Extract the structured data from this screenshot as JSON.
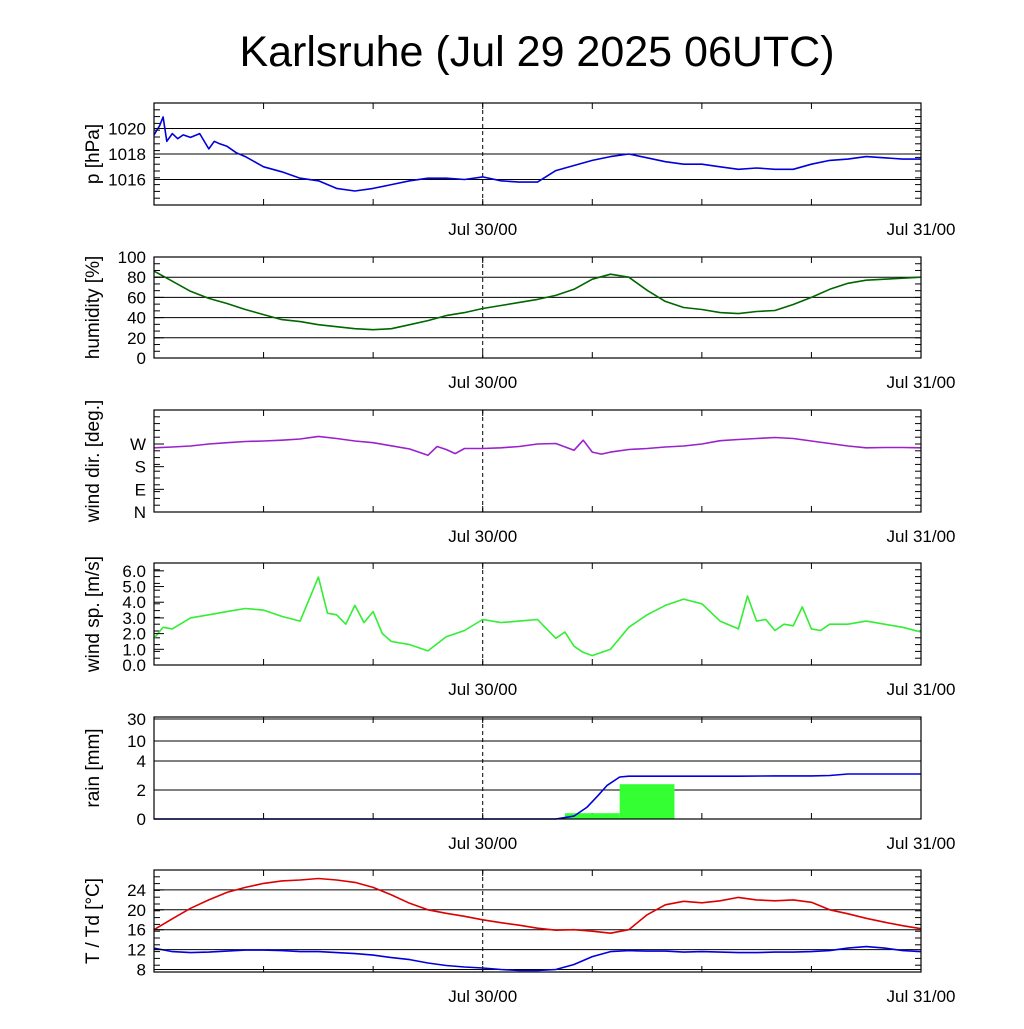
{
  "title": "Karlsruhe (Jul 29 2025 06UTC)",
  "x_axis": {
    "labels": [
      "Jul 30/00",
      "Jul 31/00"
    ],
    "range_hours": [
      0,
      42
    ],
    "label_hours": [
      18,
      42
    ],
    "minor_tick_hours": [
      6,
      12,
      18,
      24,
      30,
      36
    ],
    "dashed_marker_hour": 18
  },
  "chart_data": [
    {
      "type": "line",
      "ylabel": "p [hPa]",
      "ylim": [
        1014,
        1022
      ],
      "yticks": [
        1016,
        1018,
        1020
      ],
      "ytick_labels": [
        "1016",
        "1018",
        "1020"
      ],
      "grid_y": [
        1016,
        1018,
        1020
      ],
      "series": [
        {
          "color": "#0000dd",
          "x": [
            0,
            0.3,
            0.5,
            0.7,
            1,
            1.3,
            1.6,
            2,
            2.5,
            3,
            3.3,
            3.6,
            4,
            4.5,
            5,
            6,
            7,
            8,
            9,
            10,
            11,
            12,
            13,
            14,
            15,
            16,
            17,
            18,
            19,
            20,
            21,
            22,
            23,
            24,
            25,
            26,
            27,
            28,
            29,
            30,
            31,
            32,
            33,
            34,
            35,
            36,
            37,
            38,
            39,
            40,
            41,
            42
          ],
          "y": [
            1019.5,
            1020.2,
            1020.9,
            1019.0,
            1019.6,
            1019.2,
            1019.5,
            1019.3,
            1019.6,
            1018.4,
            1019.0,
            1018.8,
            1018.6,
            1018.1,
            1017.8,
            1017.0,
            1016.6,
            1016.1,
            1015.9,
            1015.3,
            1015.1,
            1015.3,
            1015.6,
            1015.9,
            1016.1,
            1016.1,
            1016.0,
            1016.2,
            1015.9,
            1015.8,
            1015.8,
            1016.7,
            1017.1,
            1017.5,
            1017.8,
            1018.0,
            1017.7,
            1017.4,
            1017.2,
            1017.2,
            1017.0,
            1016.8,
            1016.9,
            1016.8,
            1016.8,
            1017.2,
            1017.5,
            1017.6,
            1017.8,
            1017.7,
            1017.6,
            1017.6
          ]
        }
      ]
    },
    {
      "type": "line",
      "ylabel": "humidity [%]",
      "ylim": [
        0,
        100
      ],
      "yticks": [
        0,
        20,
        40,
        60,
        80,
        100
      ],
      "ytick_labels": [
        "0",
        "20",
        "40",
        "60",
        "80",
        "100"
      ],
      "grid_y": [
        20,
        40,
        60,
        80
      ],
      "series": [
        {
          "color": "#006600",
          "x": [
            0,
            1,
            2,
            3,
            4,
            5,
            6,
            7,
            8,
            9,
            10,
            11,
            12,
            13,
            14,
            15,
            16,
            17,
            18,
            19,
            20,
            21,
            22,
            23,
            24,
            25,
            26,
            27,
            28,
            29,
            30,
            31,
            32,
            33,
            34,
            35,
            36,
            37,
            38,
            39,
            40,
            41,
            42
          ],
          "y": [
            86,
            76,
            66,
            59,
            54,
            48,
            43,
            38,
            36,
            33,
            31,
            29,
            28,
            29,
            33,
            37,
            42,
            45,
            49,
            52,
            55,
            58,
            62,
            68,
            78,
            83,
            80,
            67,
            56,
            50,
            48,
            45,
            44,
            46,
            47,
            53,
            60,
            68,
            74,
            77,
            78,
            79,
            80
          ]
        }
      ]
    },
    {
      "type": "line",
      "ylabel": "wind dir. [deg.]",
      "ylim": [
        0,
        405
      ],
      "yticks": [
        0,
        90,
        180,
        270
      ],
      "ytick_labels": [
        "N",
        "E",
        "S",
        "W"
      ],
      "grid_y": [],
      "series": [
        {
          "color": "#9922cc",
          "x": [
            0,
            1,
            2,
            3,
            4,
            5,
            6,
            7,
            8,
            9,
            10,
            11,
            12,
            13,
            14,
            15,
            15.5,
            16,
            16.5,
            17,
            18,
            19,
            20,
            21,
            22,
            23,
            23.5,
            24,
            24.5,
            25,
            26,
            27,
            28,
            29,
            30,
            31,
            32,
            33,
            34,
            35,
            36,
            37,
            38,
            39,
            40,
            41,
            42
          ],
          "y": [
            255,
            258,
            262,
            270,
            275,
            280,
            282,
            285,
            290,
            300,
            292,
            282,
            275,
            263,
            250,
            225,
            260,
            248,
            232,
            252,
            252,
            255,
            260,
            270,
            272,
            245,
            285,
            238,
            230,
            238,
            248,
            252,
            258,
            262,
            270,
            283,
            288,
            292,
            296,
            292,
            282,
            272,
            262,
            255,
            256,
            256,
            255
          ]
        }
      ]
    },
    {
      "type": "line",
      "ylabel": "wind sp. [m/s]",
      "ylim": [
        0,
        6.5
      ],
      "yticks": [
        0,
        1,
        2,
        3,
        4,
        5,
        6
      ],
      "ytick_labels": [
        "0.0",
        "1.0",
        "2.0",
        "3.0",
        "4.0",
        "5.0",
        "6.0"
      ],
      "grid_y": [],
      "series": [
        {
          "color": "#33ee33",
          "x": [
            0,
            0.5,
            1,
            2,
            3,
            4,
            5,
            6,
            7,
            8,
            9,
            9.5,
            10,
            10.5,
            11,
            11.5,
            12,
            12.5,
            13,
            14,
            15,
            16,
            17,
            18,
            19,
            20,
            21,
            22,
            22.5,
            23,
            23.5,
            24,
            25,
            26,
            27,
            28,
            29,
            30,
            31,
            32,
            32.5,
            33,
            33.5,
            34,
            34.5,
            35,
            35.5,
            36,
            36.5,
            37,
            38,
            39,
            40,
            41,
            42
          ],
          "y": [
            1.7,
            2.4,
            2.3,
            3.0,
            3.2,
            3.4,
            3.6,
            3.5,
            3.1,
            2.8,
            5.6,
            3.3,
            3.2,
            2.6,
            3.8,
            2.7,
            3.4,
            2.0,
            1.5,
            1.3,
            0.9,
            1.8,
            2.2,
            2.9,
            2.7,
            2.8,
            2.9,
            1.7,
            2.1,
            1.2,
            0.8,
            0.6,
            1.0,
            2.4,
            3.2,
            3.8,
            4.2,
            3.9,
            2.8,
            2.3,
            4.4,
            2.8,
            2.9,
            2.2,
            2.6,
            2.5,
            3.7,
            2.3,
            2.2,
            2.6,
            2.6,
            2.8,
            2.6,
            2.4,
            2.1
          ]
        }
      ]
    },
    {
      "type": "bar",
      "ylabel": "rain [mm]",
      "ylim": [
        0,
        30
      ],
      "y_scale": "piecewise",
      "yticks": [
        0,
        2,
        4,
        10,
        30
      ],
      "ytick_labels": [
        "0",
        "2",
        "4",
        "10",
        "30"
      ],
      "grid_y": [
        2,
        4,
        10,
        30
      ],
      "bars": [
        {
          "x_start": 22.5,
          "x_end": 25.5,
          "value": 0.4
        },
        {
          "x_start": 25.5,
          "x_end": 28.5,
          "value": 2.4
        }
      ],
      "bar_color": "#33ff33",
      "series": [
        {
          "color": "#0000dd",
          "x": [
            0,
            22,
            23,
            23.7,
            24.3,
            24.8,
            25.5,
            26,
            28,
            30,
            32,
            34,
            36,
            37,
            38,
            40,
            42
          ],
          "y": [
            0,
            0,
            0.2,
            0.8,
            1.6,
            2.3,
            2.9,
            2.95,
            2.95,
            2.95,
            2.95,
            2.97,
            2.97,
            3.0,
            3.1,
            3.1,
            3.1
          ]
        }
      ]
    },
    {
      "type": "line",
      "ylabel": "T / Td [°C]",
      "ylim": [
        7.5,
        28
      ],
      "yticks": [
        8,
        12,
        16,
        20,
        24
      ],
      "ytick_labels": [
        "8",
        "12",
        "16",
        "20",
        "24"
      ],
      "grid_y": [
        8,
        12,
        16,
        20,
        24
      ],
      "series": [
        {
          "color": "#dd0000",
          "x": [
            0,
            1,
            2,
            3,
            4,
            5,
            6,
            7,
            8,
            9,
            10,
            11,
            12,
            13,
            14,
            15,
            16,
            17,
            18,
            19,
            20,
            21,
            22,
            23,
            24,
            25,
            26,
            27,
            28,
            29,
            30,
            31,
            32,
            33,
            34,
            35,
            36,
            37,
            38,
            39,
            40,
            41,
            42
          ],
          "y": [
            16.0,
            18.2,
            20.3,
            22.0,
            23.5,
            24.5,
            25.3,
            25.8,
            26.0,
            26.3,
            26.0,
            25.5,
            24.5,
            23.0,
            21.3,
            20.0,
            19.3,
            18.7,
            18.0,
            17.4,
            16.9,
            16.3,
            15.9,
            16.0,
            15.7,
            15.3,
            16.0,
            19.0,
            21.0,
            21.7,
            21.4,
            21.8,
            22.5,
            22.0,
            21.8,
            22.0,
            21.5,
            20.0,
            19.2,
            18.3,
            17.5,
            16.8,
            16.2
          ]
        },
        {
          "color": "#0000dd",
          "x": [
            0,
            1,
            2,
            3,
            4,
            5,
            6,
            7,
            8,
            9,
            10,
            11,
            12,
            13,
            14,
            15,
            16,
            17,
            18,
            19,
            20,
            21,
            22,
            23,
            24,
            25,
            26,
            27,
            28,
            29,
            30,
            31,
            32,
            33,
            34,
            35,
            36,
            37,
            38,
            39,
            40,
            41,
            42
          ],
          "y": [
            12.3,
            11.6,
            11.4,
            11.5,
            11.7,
            11.9,
            11.9,
            11.8,
            11.6,
            11.6,
            11.4,
            11.2,
            10.9,
            10.4,
            10.0,
            9.3,
            8.8,
            8.5,
            8.3,
            8.0,
            7.8,
            7.8,
            8.0,
            9.0,
            10.6,
            11.6,
            11.8,
            11.7,
            11.7,
            11.5,
            11.6,
            11.5,
            11.4,
            11.4,
            11.5,
            11.5,
            11.6,
            11.8,
            12.3,
            12.6,
            12.3,
            11.8,
            11.6
          ]
        }
      ]
    }
  ]
}
